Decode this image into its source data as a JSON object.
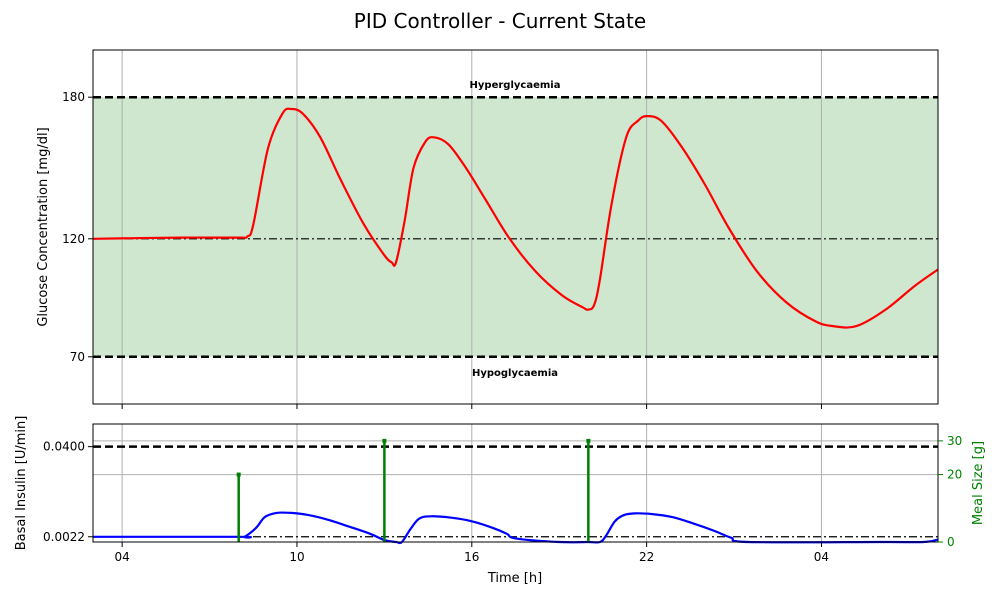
{
  "title": "PID Controller - Current State",
  "colors": {
    "glucose": "#ff0000",
    "insulin": "#0000ff",
    "meal": "#008000",
    "target_band": "#cfe6cf",
    "grid": "#b0b0b0",
    "threshold": "#000000"
  },
  "chart_data": [
    {
      "type": "line",
      "name": "glucose-panel",
      "ylabel": "Glucose Concentration [mg/dl]",
      "xlim_hours": [
        3,
        32
      ],
      "ylim": [
        50,
        200
      ],
      "yticks": [
        70,
        120,
        180
      ],
      "ytick_labels": [
        "70",
        "120",
        "180"
      ],
      "target_range": [
        70,
        180
      ],
      "setpoint": 120,
      "annotations": {
        "upper": "Hyperglycaemia",
        "lower": "Hypoglycaemia"
      },
      "series": [
        {
          "x": [
            3,
            6,
            8,
            8.3,
            8.5,
            9,
            9.5,
            9.8,
            10.2,
            10.8,
            11.5,
            12.3,
            13.0,
            13.25,
            13.4,
            13.7,
            14.0,
            14.4,
            14.7,
            15.2,
            15.8,
            16.5,
            17.3,
            18.2,
            19.1,
            19.8,
            20.0,
            20.2,
            20.4,
            20.8,
            21.3,
            21.7,
            22.0,
            22.5,
            23.2,
            24.0,
            24.8,
            25.8,
            26.8,
            27.8,
            28.4,
            29.2,
            30.2,
            31.2,
            32.0
          ],
          "y": [
            120,
            120.5,
            120.5,
            121,
            126,
            158,
            173,
            175,
            173,
            163,
            145,
            126,
            113,
            110,
            110,
            128,
            150,
            161,
            163,
            160,
            150,
            136,
            120,
            106,
            96,
            91,
            90,
            92,
            103,
            135,
            163,
            170,
            172,
            170,
            159,
            143,
            125,
            106,
            93,
            85,
            83,
            83,
            90,
            100,
            107
          ]
        }
      ]
    },
    {
      "type": "line",
      "name": "insulin-meal-panel",
      "xlabel": "Time [h]",
      "ylabel": "Basal Insulin [U/min]",
      "ylabel_right": "Meal Size [g]",
      "xlim_hours": [
        3,
        32
      ],
      "xticks_hours": [
        4,
        10,
        16,
        22,
        28
      ],
      "xtick_labels": [
        "04",
        "10",
        "16",
        "22",
        "04"
      ],
      "ylim": [
        0,
        0.0495
      ],
      "yticks": [
        0.0022,
        0.04
      ],
      "ytick_labels": [
        "0.0022",
        "0.0400"
      ],
      "ylim_right": [
        0,
        35
      ],
      "yticks_right": [
        0,
        20,
        30
      ],
      "ytick_labels_right": [
        "0",
        "20",
        "30"
      ],
      "insulin_max": 0.04,
      "insulin_basal": 0.0022,
      "series": [
        {
          "x": [
            3,
            8,
            8.2,
            8.6,
            8.9,
            9.3,
            9.8,
            10.4,
            11.1,
            11.8,
            12.5,
            13.0,
            13.4,
            13.6,
            13.9,
            14.2,
            14.6,
            15.3,
            16.0,
            16.7,
            17.2,
            17.5,
            19.0,
            20.0,
            20.4,
            20.6,
            20.9,
            21.2,
            21.6,
            22.2,
            22.9,
            23.6,
            24.3,
            24.9,
            25.5,
            30.0,
            31.5,
            32.0
          ],
          "y": [
            0.0022,
            0.0022,
            0.0022,
            0.006,
            0.0105,
            0.0122,
            0.0122,
            0.0113,
            0.0092,
            0.0064,
            0.0035,
            0.0008,
            0.0,
            0.0,
            0.0055,
            0.0098,
            0.0108,
            0.0102,
            0.0087,
            0.006,
            0.0035,
            0.0015,
            0.0,
            0.0,
            0.0,
            0.0025,
            0.0085,
            0.0112,
            0.012,
            0.0117,
            0.0104,
            0.0078,
            0.0048,
            0.0018,
            0.0,
            0.0,
            0.0,
            0.001
          ]
        }
      ],
      "meals": {
        "x": [
          8.0,
          13.0,
          20.0
        ],
        "size_g": [
          20,
          30,
          30
        ]
      }
    }
  ]
}
